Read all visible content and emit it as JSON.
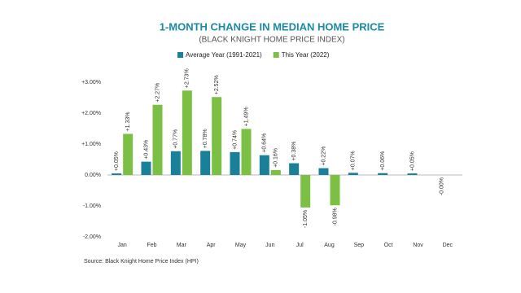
{
  "chart_data": {
    "type": "bar",
    "title": "1-MONTH CHANGE IN MEDIAN HOME PRICE",
    "subtitle": "(BLACK KNIGHT HOME PRICE INDEX)",
    "source": "Source: Black Knight Home Price Index (HPI)",
    "categories": [
      "Jan",
      "Feb",
      "Mar",
      "Apr",
      "May",
      "Jun",
      "Jul",
      "Aug",
      "Sep",
      "Oct",
      "Nov",
      "Dec"
    ],
    "series": [
      {
        "name": "Average Year (1991-2021)",
        "color": "#1a7f99",
        "values": [
          0.05,
          0.43,
          0.77,
          0.78,
          0.74,
          0.64,
          0.38,
          0.22,
          0.07,
          0.06,
          0.05,
          0
        ],
        "value_labels": [
          "+0.05%",
          "+0.43%",
          "+0.77%",
          "+0.78%",
          "+0.74%",
          "+0.64%",
          "+0.38%",
          "+0.22%",
          "+0.07%",
          "+0.06%",
          "+0.05%",
          "-0.00%"
        ]
      },
      {
        "name": "This Year (2022)",
        "color": "#7cbf45",
        "values": [
          1.33,
          2.27,
          2.73,
          2.52,
          1.49,
          0.16,
          -1.05,
          -0.98,
          null,
          null,
          null,
          null
        ],
        "value_labels": [
          "+1.33%",
          "+2.27%",
          "+2.73%",
          "+2.52%",
          "+1.49%",
          "+0.16%",
          "-1.05%",
          "-0.98%",
          null,
          null,
          null,
          null
        ]
      }
    ],
    "ylim": [
      -2,
      3
    ],
    "yticks": [
      {
        "value": 3,
        "label": "+3.00%"
      },
      {
        "value": 2,
        "label": "+2.00%"
      },
      {
        "value": 1,
        "label": "+1.00%"
      },
      {
        "value": 0,
        "label": "0.00%"
      },
      {
        "value": -1,
        "label": "-1.00%"
      },
      {
        "value": -2,
        "label": "-2.00%"
      }
    ],
    "legend": "top"
  }
}
